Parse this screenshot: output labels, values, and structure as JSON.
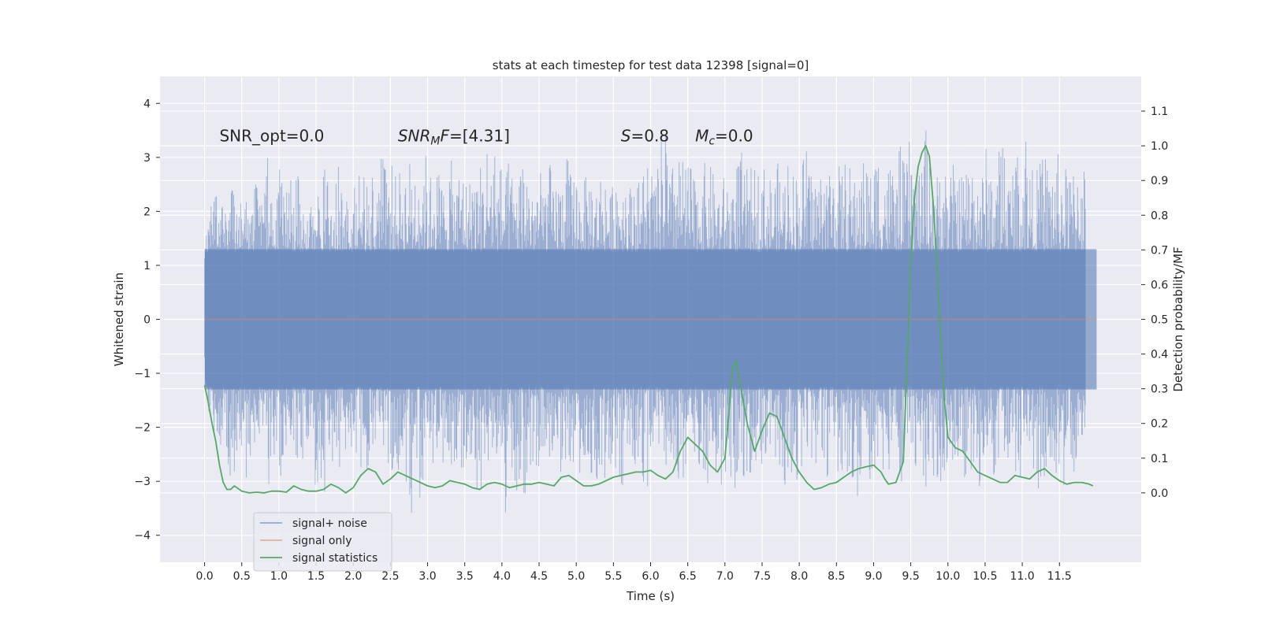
{
  "chart_data": {
    "type": "line",
    "title": "stats at each timestep for test data 12398 [signal=0]",
    "xlabel": "Time (s)",
    "ylabel": "Whitened strain",
    "y2label": "Detection probability/MF",
    "xlim": [
      -0.6,
      12.6
    ],
    "ylim": [
      -4.5,
      4.5
    ],
    "y2lim": [
      -0.2,
      1.2
    ],
    "x_ticks": [
      0.0,
      0.5,
      1.0,
      1.5,
      2.0,
      2.5,
      3.0,
      3.5,
      4.0,
      4.5,
      5.0,
      5.5,
      6.0,
      6.5,
      7.0,
      7.5,
      8.0,
      8.5,
      9.0,
      9.5,
      10.0,
      10.5,
      11.0,
      11.5
    ],
    "x_tick_labels": [
      "0.0",
      "0.5",
      "1.0",
      "1.5",
      "2.0",
      "2.5",
      "3.0",
      "3.5",
      "4.0",
      "4.5",
      "5.0",
      "5.5",
      "6.0",
      "6.5",
      "7.0",
      "7.5",
      "8.0",
      "8.5",
      "9.0",
      "9.5",
      "10.0",
      "10.5",
      "11.0",
      "11.5"
    ],
    "y_ticks": [
      -4,
      -3,
      -2,
      -1,
      0,
      1,
      2,
      3,
      4
    ],
    "y_tick_labels": [
      "−4",
      "−3",
      "−2",
      "−1",
      "0",
      "1",
      "2",
      "3",
      "4"
    ],
    "y2_ticks": [
      0.0,
      0.1,
      0.2,
      0.3,
      0.4,
      0.5,
      0.6,
      0.7,
      0.8,
      0.9,
      1.0,
      1.1
    ],
    "y2_tick_labels": [
      "0.0",
      "0.1",
      "0.2",
      "0.3",
      "0.4",
      "0.5",
      "0.6",
      "0.7",
      "0.8",
      "0.9",
      "1.0",
      "1.1"
    ],
    "grid": true,
    "legend_position": "lower-left",
    "annotations": [
      {
        "label": "SNR_opt=0.0",
        "x": 0.2,
        "y": 3.3
      },
      {
        "label": "SNR_M F=[4.31]",
        "x": 2.6,
        "y": 3.3
      },
      {
        "label": "S=0.8",
        "x": 5.6,
        "y": 3.3
      },
      {
        "label": "M_c=0.0",
        "x": 6.6,
        "y": 3.3
      }
    ],
    "series": [
      {
        "name": "signal+ noise",
        "axis": "left",
        "color": "#4c72b0",
        "opacity": 0.5,
        "x_range": [
          0.0,
          12.0
        ],
        "envelope": {
          "x": [
            0.0,
            0.05,
            0.1,
            0.15,
            0.2,
            0.25,
            0.3,
            0.35,
            0.4,
            0.45,
            0.5,
            0.55,
            0.6,
            0.65,
            0.7,
            0.75,
            0.8,
            0.85,
            0.9,
            0.95,
            1.0,
            1.05,
            1.1,
            1.15,
            1.2,
            1.25,
            1.3,
            1.35,
            1.4,
            1.45,
            1.5,
            1.55,
            1.6,
            1.65,
            1.7,
            1.75,
            1.8,
            1.85,
            1.9,
            1.95,
            2.0,
            2.05,
            2.1,
            2.15,
            2.2,
            2.25,
            2.3,
            2.35,
            2.4,
            2.45,
            2.5,
            2.55,
            2.6,
            2.65,
            2.7,
            2.75,
            2.8,
            2.85,
            2.9,
            2.95,
            3.0,
            3.05,
            3.1,
            3.15,
            3.2,
            3.25,
            3.3,
            3.35,
            3.4,
            3.45,
            3.5,
            3.55,
            3.6,
            3.65,
            3.7,
            3.75,
            3.8,
            3.85,
            3.9,
            3.95,
            4.0,
            4.05,
            4.1,
            4.15,
            4.2,
            4.25,
            4.3,
            4.35,
            4.4,
            4.45,
            4.5,
            4.55,
            4.6,
            4.65,
            4.7,
            4.75,
            4.8,
            4.85,
            4.9,
            4.95,
            5.0,
            5.05,
            5.1,
            5.15,
            5.2,
            5.25,
            5.3,
            5.35,
            5.4,
            5.45,
            5.5,
            5.55,
            5.6,
            5.65,
            5.7,
            5.75,
            5.8,
            5.85,
            5.9,
            5.95,
            6.0,
            6.05,
            6.1,
            6.15,
            6.2,
            6.25,
            6.3,
            6.35,
            6.4,
            6.45,
            6.5,
            6.55,
            6.6,
            6.65,
            6.7,
            6.75,
            6.8,
            6.85,
            6.9,
            6.95,
            7.0,
            7.05,
            7.1,
            7.15,
            7.2,
            7.25,
            7.3,
            7.35,
            7.4,
            7.45,
            7.5,
            7.55,
            7.6,
            7.65,
            7.7,
            7.75,
            7.8,
            7.85,
            7.9,
            7.95,
            8.0,
            8.05,
            8.1,
            8.15,
            8.2,
            8.25,
            8.3,
            8.35,
            8.4,
            8.45,
            8.5,
            8.55,
            8.6,
            8.65,
            8.7,
            8.75,
            8.8,
            8.85,
            8.9,
            8.95,
            9.0,
            9.05,
            9.1,
            9.15,
            9.2,
            9.25,
            9.3,
            9.35,
            9.4,
            9.45,
            9.5,
            9.55,
            9.6,
            9.65,
            9.7,
            9.75,
            9.8,
            9.85,
            9.9,
            9.95,
            10.0,
            10.05,
            10.1,
            10.15,
            10.2,
            10.25,
            10.3,
            10.35,
            10.4,
            10.45,
            10.5,
            10.55,
            10.6,
            10.65,
            10.7,
            10.75,
            10.8,
            10.85,
            10.9,
            10.95,
            11.0,
            11.05,
            11.1,
            11.15,
            11.2,
            11.25,
            11.3,
            11.35,
            11.4,
            11.45,
            11.5,
            11.55,
            11.6,
            11.65,
            11.7,
            11.75,
            11.8,
            11.85,
            11.9,
            11.95,
            12.0
          ],
          "max": [
            1.1,
            2.1,
            2.3,
            2.5,
            2.2,
            2.6,
            2.0,
            2.4,
            2.5,
            2.0,
            2.6,
            2.2,
            2.3,
            2.4,
            3.1,
            2.1,
            2.7,
            3.0,
            2.2,
            2.3,
            2.9,
            3.2,
            2.5,
            2.8,
            2.3,
            3.0,
            3.1,
            2.1,
            2.6,
            2.4,
            3.3,
            2.1,
            2.7,
            3.0,
            2.6,
            2.9,
            3.1,
            2.2,
            3.2,
            2.4,
            2.6,
            2.3,
            3.0,
            2.8,
            2.7,
            3.2,
            2.1,
            3.3,
            3.0,
            2.9,
            3.1,
            2.7,
            2.6,
            3.0,
            2.8,
            3.1,
            2.6,
            3.4,
            2.8,
            3.3,
            2.9,
            2.7,
            3.0,
            2.8,
            2.6,
            2.9,
            3.1,
            2.7,
            2.6,
            3.1,
            2.9,
            2.3,
            3.2,
            2.6,
            3.0,
            2.8,
            3.4,
            2.9,
            3.8,
            2.7,
            3.0,
            2.6,
            3.1,
            2.6,
            2.8,
            2.9,
            3.3,
            2.7,
            2.8,
            2.4,
            2.9,
            2.5,
            2.8,
            2.9,
            2.3,
            2.9,
            2.5,
            3.2,
            2.9,
            2.6,
            2.9,
            2.5,
            2.7,
            2.6,
            2.8,
            2.4,
            2.6,
            3.0,
            2.8,
            2.2,
            2.8,
            2.9,
            2.5,
            3.0,
            2.3,
            2.7,
            3.0,
            2.5,
            2.9,
            3.2,
            2.9,
            2.6,
            2.8,
            3.6,
            4.1,
            2.6,
            2.9,
            3.5,
            3.1,
            2.9,
            3.0,
            2.8,
            2.7,
            2.6,
            3.3,
            2.6,
            2.9,
            2.7,
            2.5,
            2.4,
            2.8,
            2.5,
            2.7,
            2.8,
            3.6,
            2.6,
            3.0,
            2.8,
            2.9,
            2.9,
            3.1,
            2.7,
            2.8,
            2.5,
            3.0,
            2.6,
            2.8,
            3.3,
            2.7,
            2.9,
            2.7,
            3.1,
            3.2,
            2.8,
            2.9,
            2.6,
            2.9,
            3.0,
            2.9,
            3.2,
            3.3,
            2.7,
            3.1,
            2.8,
            2.9,
            2.6,
            3.0,
            2.9,
            3.1,
            2.7,
            2.9,
            3.4,
            2.8,
            3.0,
            2.9,
            3.0,
            2.5,
            3.3,
            2.9,
            3.1,
            3.5,
            2.8,
            2.9,
            2.7,
            4.0,
            2.9,
            3.0,
            2.7,
            3.0,
            3.1,
            2.6,
            2.8,
            3.0,
            2.7,
            2.8,
            2.9,
            2.9,
            3.2,
            2.9,
            2.6,
            3.3,
            3.0,
            2.8,
            2.6,
            3.4,
            3.7,
            2.9,
            2.6,
            3.5,
            3.0,
            2.9,
            3.8,
            2.8,
            2.8,
            2.8,
            3.0,
            3.2,
            2.9,
            3.1,
            2.8,
            3.3,
            2.7,
            2.9,
            2.7,
            2.9,
            3.2,
            3.5,
            2.8,
            2.9,
            2.5,
            2.3,
            2.7,
            2.0
          ],
          "min": [
            -0.6,
            -2.2,
            -2.0,
            -2.6,
            -2.8,
            -3.0,
            -2.4,
            -3.2,
            -2.9,
            -3.1,
            -2.3,
            -3.0,
            -2.8,
            -2.6,
            -3.1,
            -2.9,
            -2.5,
            -3.2,
            -2.7,
            -2.6,
            -3.0,
            -2.9,
            -2.5,
            -2.4,
            -3.1,
            -2.7,
            -2.6,
            -2.9,
            -2.5,
            -2.8,
            -3.3,
            -2.6,
            -3.6,
            -2.7,
            -2.9,
            -2.5,
            -3.1,
            -2.6,
            -2.4,
            -2.9,
            -2.7,
            -3.0,
            -2.8,
            -2.5,
            -3.0,
            -2.6,
            -2.4,
            -2.5,
            -2.6,
            -2.8,
            -3.0,
            -2.7,
            -2.9,
            -2.5,
            -3.0,
            -3.3,
            -4.1,
            -2.7,
            -3.4,
            -2.9,
            -2.6,
            -2.8,
            -3.0,
            -2.7,
            -2.9,
            -2.5,
            -3.1,
            -2.8,
            -2.6,
            -3.0,
            -2.7,
            -2.9,
            -3.2,
            -3.3,
            -3.6,
            -2.8,
            -2.7,
            -2.9,
            -3.1,
            -2.8,
            -3.2,
            -3.6,
            -3.0,
            -2.8,
            -3.2,
            -2.9,
            -3.4,
            -2.8,
            -2.9,
            -2.7,
            -3.2,
            -2.9,
            -2.8,
            -3.0,
            -2.8,
            -2.6,
            -2.9,
            -2.7,
            -2.8,
            -3.1,
            -2.7,
            -2.9,
            -3.0,
            -2.6,
            -2.9,
            -2.8,
            -3.6,
            -2.8,
            -3.0,
            -2.9,
            -3.0,
            -2.8,
            -3.1,
            -3.1,
            -2.8,
            -3.0,
            -2.9,
            -2.6,
            -3.0,
            -3.2,
            -3.0,
            -2.9,
            -2.8,
            -3.1,
            -3.0,
            -3.3,
            -2.9,
            -3.1,
            -2.9,
            -3.0,
            -2.8,
            -2.9,
            -2.7,
            -2.9,
            -3.0,
            -3.2,
            -2.9,
            -3.3,
            -3.0,
            -3.1,
            -2.8,
            -3.1,
            -3.4,
            -3.3,
            -2.9,
            -3.0,
            -2.8,
            -2.9,
            -2.5,
            -3.0,
            -2.7,
            -2.9,
            -2.8,
            -3.1,
            -2.6,
            -3.0,
            -3.2,
            -2.8,
            -2.9,
            -3.4,
            -2.7,
            -2.8,
            -2.9,
            -2.7,
            -3.0,
            -2.9,
            -2.8,
            -3.1,
            -2.8,
            -2.7,
            -3.0,
            -2.9,
            -2.8,
            -3.0,
            -2.9,
            -3.1,
            -3.4,
            -2.8,
            -2.9,
            -3.2,
            -3.0,
            -3.1,
            -2.8,
            -2.9,
            -3.0,
            -2.8,
            -3.1,
            -3.0,
            -3.2,
            -3.1,
            -2.8,
            -2.9,
            -3.0,
            -2.8,
            -3.2,
            -3.1,
            -3.6,
            -3.0,
            -3.1,
            -2.8,
            -2.9,
            -3.2,
            -3.1,
            -3.0,
            -2.9,
            -3.0,
            -2.8,
            -2.9,
            -3.2,
            -3.3,
            -3.0,
            -2.7,
            -2.9,
            -3.1,
            -2.8,
            -3.0,
            -3.0,
            -3.2,
            -2.8,
            -2.9,
            -3.2,
            -3.0,
            -2.9,
            -3.1,
            -3.3,
            -3.0,
            -3.2,
            -3.1,
            -2.9,
            -3.1,
            -3.0,
            -3.4,
            -2.8,
            -3.0,
            -2.9,
            -2.6,
            -2.5,
            -2.1
          ]
        },
        "band": [
          -1.3,
          1.3
        ]
      },
      {
        "name": "signal only",
        "axis": "left",
        "color": "#dd8452",
        "x": [
          0.0,
          12.0
        ],
        "values": [
          0.0,
          0.0
        ]
      },
      {
        "name": "signal statistics",
        "axis": "right",
        "color": "#55a868",
        "x": [
          0.0,
          0.05,
          0.1,
          0.15,
          0.2,
          0.25,
          0.3,
          0.35,
          0.4,
          0.5,
          0.6,
          0.7,
          0.8,
          0.9,
          1.0,
          1.1,
          1.2,
          1.3,
          1.4,
          1.5,
          1.6,
          1.7,
          1.8,
          1.9,
          2.0,
          2.1,
          2.2,
          2.3,
          2.4,
          2.5,
          2.6,
          2.7,
          2.8,
          2.9,
          3.0,
          3.1,
          3.2,
          3.3,
          3.4,
          3.5,
          3.6,
          3.7,
          3.8,
          3.9,
          4.0,
          4.1,
          4.2,
          4.3,
          4.4,
          4.5,
          4.6,
          4.7,
          4.8,
          4.9,
          5.0,
          5.1,
          5.2,
          5.3,
          5.4,
          5.5,
          5.6,
          5.7,
          5.8,
          5.9,
          6.0,
          6.1,
          6.2,
          6.3,
          6.4,
          6.5,
          6.6,
          6.7,
          6.8,
          6.9,
          7.0,
          7.05,
          7.1,
          7.15,
          7.2,
          7.3,
          7.4,
          7.5,
          7.6,
          7.7,
          7.8,
          7.9,
          8.0,
          8.1,
          8.2,
          8.3,
          8.4,
          8.5,
          8.6,
          8.7,
          8.8,
          8.9,
          9.0,
          9.1,
          9.15,
          9.2,
          9.3,
          9.4,
          9.5,
          9.55,
          9.6,
          9.65,
          9.7,
          9.75,
          9.8,
          9.85,
          9.9,
          9.95,
          10.0,
          10.1,
          10.2,
          10.3,
          10.4,
          10.5,
          10.6,
          10.7,
          10.8,
          10.9,
          11.0,
          11.1,
          11.2,
          11.3,
          11.4,
          11.5,
          11.6,
          11.7,
          11.8,
          11.9,
          11.95
        ],
        "values": [
          0.31,
          0.26,
          0.2,
          0.15,
          0.08,
          0.03,
          0.01,
          0.01,
          0.02,
          0.005,
          0.0,
          0.002,
          0.0,
          0.005,
          0.005,
          0.002,
          0.02,
          0.01,
          0.005,
          0.005,
          0.01,
          0.025,
          0.015,
          0.0,
          0.015,
          0.05,
          0.07,
          0.06,
          0.025,
          0.04,
          0.06,
          0.05,
          0.04,
          0.03,
          0.02,
          0.015,
          0.02,
          0.035,
          0.03,
          0.025,
          0.015,
          0.01,
          0.025,
          0.03,
          0.025,
          0.015,
          0.02,
          0.025,
          0.025,
          0.03,
          0.025,
          0.02,
          0.045,
          0.05,
          0.035,
          0.02,
          0.02,
          0.025,
          0.035,
          0.045,
          0.05,
          0.055,
          0.06,
          0.06,
          0.065,
          0.05,
          0.04,
          0.06,
          0.12,
          0.16,
          0.14,
          0.12,
          0.08,
          0.06,
          0.1,
          0.22,
          0.36,
          0.38,
          0.32,
          0.2,
          0.12,
          0.18,
          0.23,
          0.22,
          0.16,
          0.1,
          0.06,
          0.03,
          0.01,
          0.015,
          0.025,
          0.03,
          0.045,
          0.06,
          0.07,
          0.075,
          0.08,
          0.06,
          0.04,
          0.025,
          0.03,
          0.09,
          0.66,
          0.85,
          0.94,
          0.98,
          1.0,
          0.97,
          0.84,
          0.67,
          0.45,
          0.27,
          0.16,
          0.13,
          0.12,
          0.09,
          0.06,
          0.05,
          0.04,
          0.03,
          0.03,
          0.05,
          0.045,
          0.04,
          0.06,
          0.07,
          0.05,
          0.035,
          0.025,
          0.03,
          0.03,
          0.025,
          0.02
        ]
      }
    ]
  }
}
